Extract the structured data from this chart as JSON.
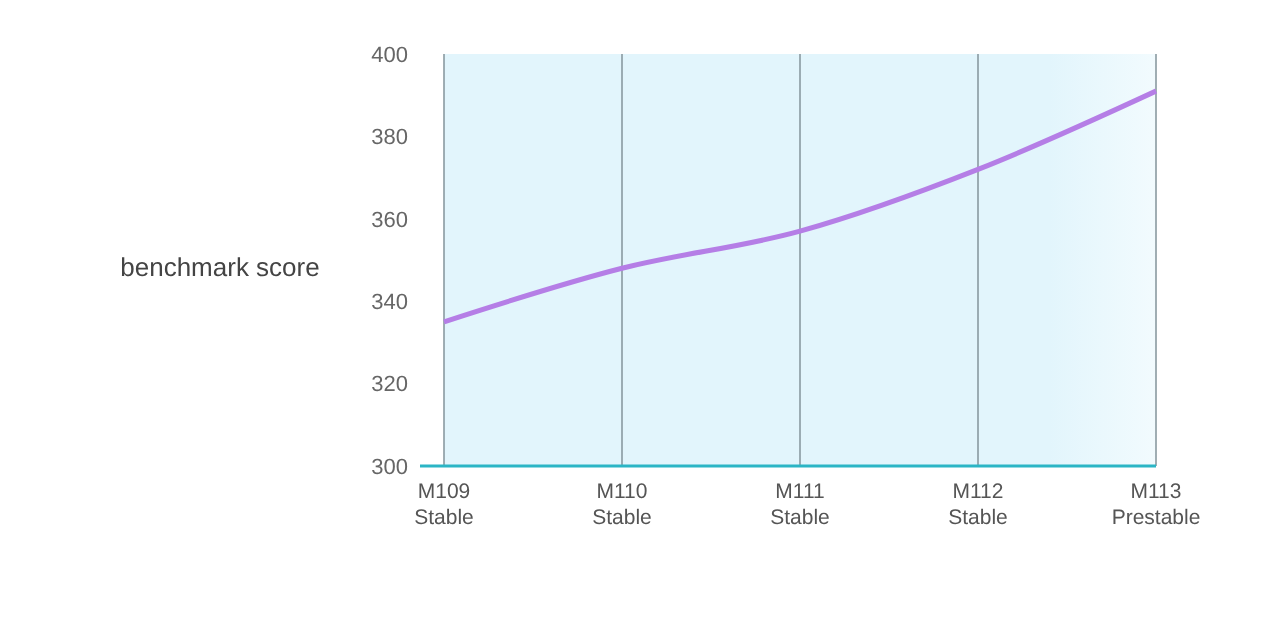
{
  "chart_data": {
    "type": "line",
    "ylabel": "benchmark score",
    "categories": [
      "M109 Stable",
      "M110 Stable",
      "M111 Stable",
      "M112 Stable",
      "M113 Prestable"
    ],
    "series": [
      {
        "color": "#b57ee6",
        "values": [
          335,
          348,
          357,
          372,
          391
        ]
      }
    ],
    "ylim": [
      300,
      400
    ],
    "yticks": [
      300,
      320,
      340,
      360,
      380,
      400
    ],
    "grid": "x",
    "marker": "none",
    "line_style": "solid"
  }
}
